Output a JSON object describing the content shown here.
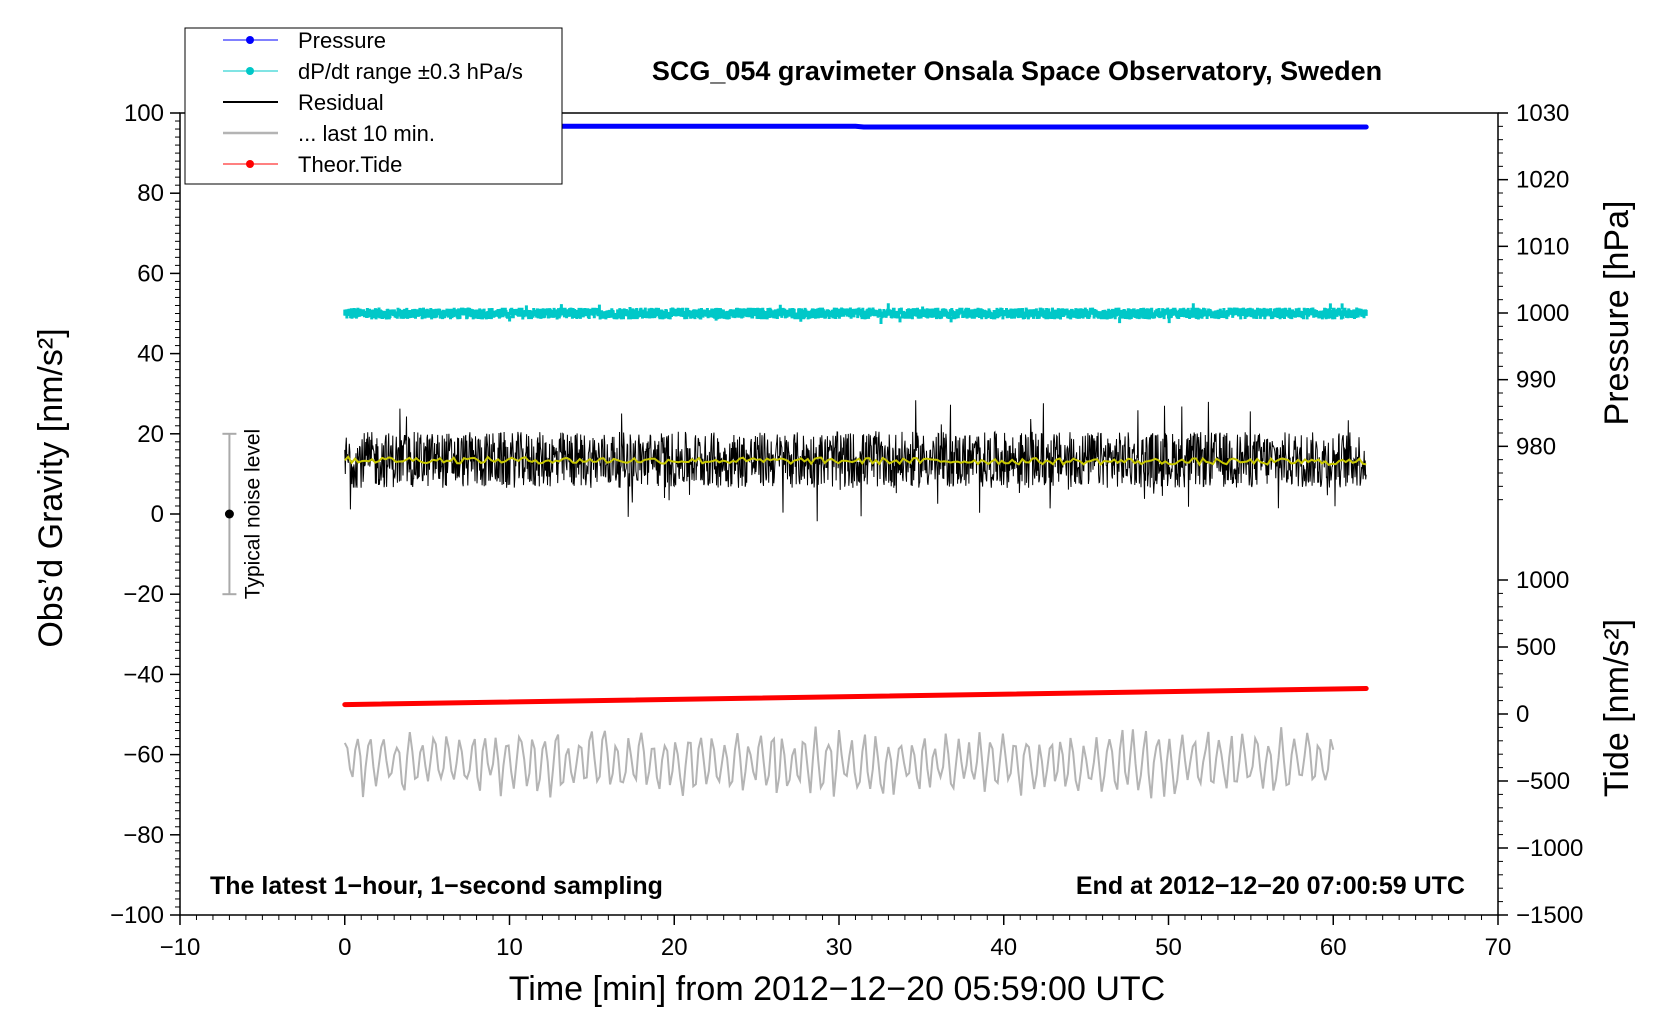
{
  "chart_data": {
    "type": "line",
    "title": "SCG_054 gravimeter Onsala Space Observatory, Sweden",
    "xlabel": "Time [min] from 2012−12−20 05:59:00 UTC",
    "ylabel_left": "Obs’d Gravity [nm/s²]",
    "ylabel_right_pressure": "Pressure [hPa]",
    "ylabel_right_tide": "Tide [nm/s²]",
    "xlim": [
      -10,
      70
    ],
    "ylim": [
      -100,
      100
    ],
    "x_ticks": [
      "−10",
      "0",
      "10",
      "20",
      "30",
      "40",
      "50",
      "60",
      "70"
    ],
    "x_tick_values": [
      -10,
      0,
      10,
      20,
      30,
      40,
      50,
      60,
      70
    ],
    "y_ticks": [
      "−100",
      "−80",
      "−60",
      "−40",
      "−20",
      "0",
      "20",
      "40",
      "60",
      "80",
      "100"
    ],
    "y_tick_values": [
      -100,
      -80,
      -60,
      -40,
      -20,
      0,
      20,
      40,
      60,
      80,
      100
    ],
    "pressure_axis": {
      "ticks": [
        "980",
        "990",
        "1000",
        "1010",
        "1020",
        "1030"
      ],
      "tick_values": [
        980,
        990,
        1000,
        1010,
        1020,
        1030
      ],
      "range_hpa": [
        970,
        1030
      ]
    },
    "tide_axis": {
      "ticks": [
        "−1500",
        "−1000",
        "−500",
        "0",
        "500",
        "1000"
      ],
      "tick_values": [
        -1500,
        -1000,
        -500,
        0,
        500,
        1000
      ],
      "range": [
        -1500,
        1500
      ]
    },
    "legend_position": "top-left",
    "legend": [
      "Pressure",
      "dP/dt range ±0.3 hPa/s",
      "Residual",
      "... last 10 min.",
      "Theor.Tide"
    ],
    "series": [
      {
        "name": "Pressure",
        "color": "#0000ff",
        "axis": "pressure",
        "x": [
          0,
          31,
          31.5,
          62
        ],
        "y": [
          1028.0,
          1028.0,
          1027.9,
          1027.9
        ]
      },
      {
        "name": "dP/dt range ±0.3 hPa/s",
        "color": "#00c8c8",
        "axis": "gravity",
        "x": [
          0,
          62
        ],
        "y": [
          50,
          50
        ],
        "spread": 1.5
      },
      {
        "name": "Residual",
        "color": "#000000",
        "axis": "gravity",
        "x": [
          0,
          62
        ],
        "y": [
          13.5,
          13.5
        ],
        "spread": 7
      },
      {
        "name": "",
        "color": "#c8c800",
        "axis": "gravity",
        "x": [
          0,
          62
        ],
        "y": [
          13.5,
          13.0
        ]
      },
      {
        "name": "... last 10 min.",
        "color": "#b4b4b4",
        "axis": "gravity",
        "x": [
          0,
          60
        ],
        "y": [
          -62,
          -62
        ],
        "spread": 9
      },
      {
        "name": "Theor.Tide",
        "color": "#ff0000",
        "axis": "tide",
        "x": [
          0,
          62
        ],
        "y": [
          70,
          190
        ]
      }
    ],
    "noise_level": {
      "label": "Typical noise level",
      "x": -7,
      "center": 0,
      "range": [
        -20,
        20
      ]
    },
    "annotation_left": "The latest 1−hour, 1−second sampling",
    "annotation_right": "End at 2012−12−20 07:00:59 UTC"
  }
}
